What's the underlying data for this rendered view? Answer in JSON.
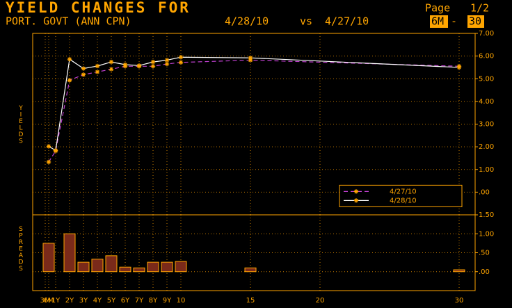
{
  "header": {
    "title": "YIELD CHANGES FOR",
    "page_label": "Page",
    "page": "1/2",
    "security": "PORT. GOVT (ANN CPN)",
    "date1": "4/28/10",
    "vs": "vs",
    "date2": "4/27/10",
    "range_from": "6M",
    "range_sep": "-",
    "range_to": "30"
  },
  "chart_data": [
    {
      "type": "line",
      "y_label": "YIELDS",
      "x": [
        0.5,
        1,
        2,
        3,
        4,
        5,
        6,
        7,
        8,
        9,
        10,
        15,
        30
      ],
      "series": [
        {
          "name": "4/27/10",
          "color": "#c040d0",
          "marker_color": "#ffa500",
          "dash": true,
          "values": [
            1.33,
            1.82,
            4.93,
            5.18,
            5.3,
            5.42,
            5.55,
            5.55,
            5.55,
            5.65,
            5.72,
            5.82,
            5.55
          ]
        },
        {
          "name": "4/28/10",
          "color": "#ffffff",
          "marker_color": "#ffa500",
          "dash": false,
          "values": [
            2.02,
            1.84,
            5.86,
            5.45,
            5.56,
            5.74,
            5.62,
            5.58,
            5.74,
            5.82,
            5.95,
            5.92,
            5.5
          ]
        }
      ],
      "xlim": [
        -0.65,
        31.15
      ],
      "ylim": [
        -1,
        7
      ],
      "yticks": [
        {
          "value": 7,
          "label": "7.00"
        },
        {
          "value": 6,
          "label": "6.00"
        },
        {
          "value": 5,
          "label": "5.00"
        },
        {
          "value": 4,
          "label": "4.00"
        },
        {
          "value": 3,
          "label": "3.00"
        },
        {
          "value": 2,
          "label": "2.00"
        },
        {
          "value": 1,
          "label": "1.00"
        },
        {
          "value": 0,
          "label": ".00"
        }
      ],
      "grid": true,
      "legend": "bottom-right"
    },
    {
      "type": "bar",
      "y_label": "SPREADS",
      "x": [
        0.5,
        1,
        2,
        3,
        4,
        5,
        6,
        7,
        8,
        9,
        10,
        15,
        30
      ],
      "values": [
        0.75,
        0,
        1.0,
        0.25,
        0.33,
        0.42,
        0.12,
        0.1,
        0.25,
        0.25,
        0.27,
        0.1,
        0.05
      ],
      "color": "#7a2a1a",
      "edge_color": "#ffa500",
      "xlim": [
        -0.65,
        31.15
      ],
      "ylim": [
        -0.5,
        1.5
      ],
      "xticks": [
        {
          "value": 0.25,
          "label": "3M"
        },
        {
          "value": 0.5,
          "label": "6M"
        },
        {
          "value": 1,
          "label": "1Y"
        },
        {
          "value": 2,
          "label": "2Y"
        },
        {
          "value": 3,
          "label": "3Y"
        },
        {
          "value": 4,
          "label": "4Y"
        },
        {
          "value": 5,
          "label": "5Y"
        },
        {
          "value": 6,
          "label": "6Y"
        },
        {
          "value": 7,
          "label": "7Y"
        },
        {
          "value": 8,
          "label": "8Y"
        },
        {
          "value": 9,
          "label": "9Y"
        },
        10,
        15,
        20,
        30
      ],
      "yticks": [
        {
          "value": 1.5,
          "label": "1.50"
        },
        {
          "value": 1,
          "label": "1.00"
        },
        {
          "value": 0.5,
          "label": ".50"
        },
        {
          "value": 0,
          "label": ".00"
        }
      ],
      "grid": true
    }
  ]
}
